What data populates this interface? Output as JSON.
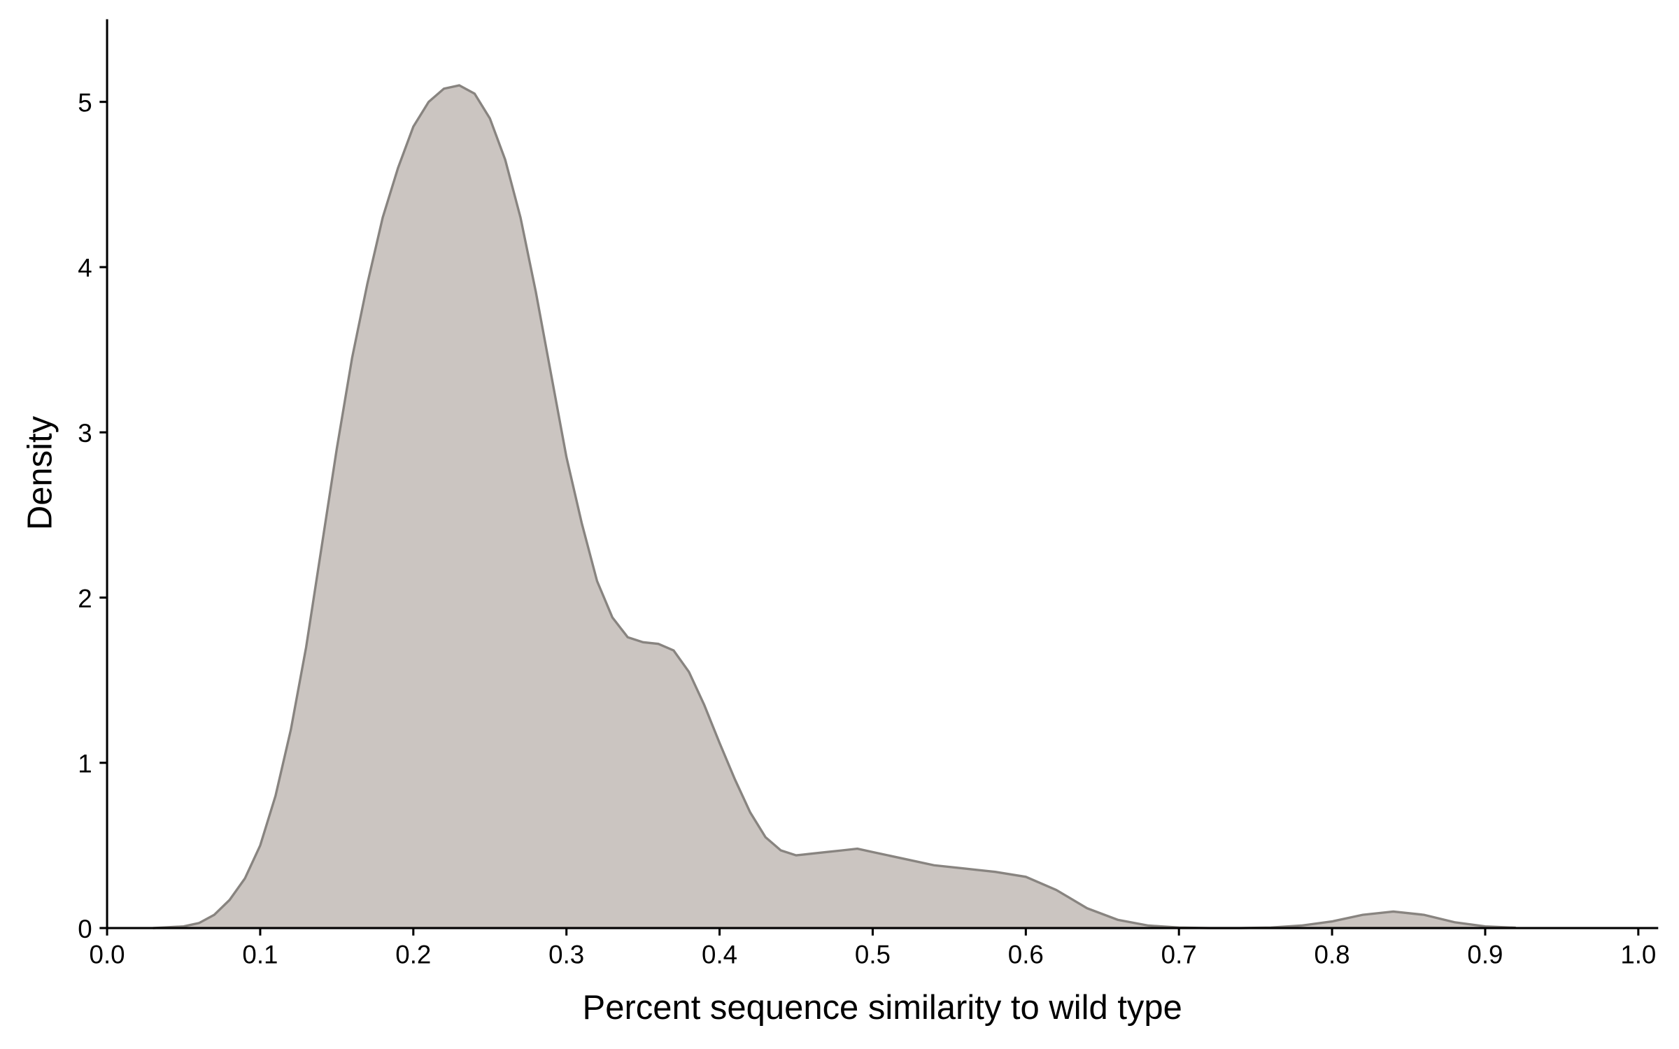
{
  "chart_data": {
    "type": "area",
    "x_label": "Percent sequence similarity to wild type",
    "y_label": "Density",
    "series": [
      {
        "color": "#cbc5c1",
        "line_color": "#888480",
        "x": [
          0.03,
          0.05,
          0.06,
          0.07,
          0.08,
          0.09,
          0.1,
          0.11,
          0.12,
          0.13,
          0.14,
          0.15,
          0.16,
          0.17,
          0.18,
          0.19,
          0.2,
          0.21,
          0.22,
          0.23,
          0.24,
          0.25,
          0.26,
          0.27,
          0.28,
          0.29,
          0.3,
          0.31,
          0.32,
          0.33,
          0.34,
          0.35,
          0.36,
          0.37,
          0.38,
          0.39,
          0.4,
          0.41,
          0.42,
          0.43,
          0.44,
          0.45,
          0.46,
          0.47,
          0.48,
          0.49,
          0.5,
          0.52,
          0.54,
          0.56,
          0.58,
          0.6,
          0.62,
          0.64,
          0.66,
          0.68,
          0.7,
          0.72,
          0.74,
          0.76,
          0.78,
          0.8,
          0.82,
          0.84,
          0.86,
          0.88,
          0.9,
          0.92
        ],
        "values": [
          0,
          0.01,
          0.03,
          0.08,
          0.17,
          0.3,
          0.5,
          0.8,
          1.2,
          1.7,
          2.3,
          2.9,
          3.45,
          3.9,
          4.3,
          4.6,
          4.85,
          5.0,
          5.08,
          5.1,
          5.05,
          4.9,
          4.65,
          4.3,
          3.85,
          3.35,
          2.85,
          2.45,
          2.1,
          1.88,
          1.76,
          1.73,
          1.72,
          1.68,
          1.55,
          1.35,
          1.12,
          0.9,
          0.7,
          0.55,
          0.47,
          0.44,
          0.45,
          0.46,
          0.47,
          0.48,
          0.46,
          0.42,
          0.38,
          0.36,
          0.34,
          0.31,
          0.23,
          0.12,
          0.05,
          0.015,
          0.003,
          0,
          0,
          0.003,
          0.015,
          0.04,
          0.08,
          0.1,
          0.08,
          0.035,
          0.01,
          0.002
        ]
      }
    ],
    "xlim": [
      0,
      1.013
    ],
    "ylim": [
      0,
      5.5
    ],
    "xticks": [
      {
        "value": 0,
        "label": "0.0"
      },
      0.1,
      0.2,
      0.3,
      0.4,
      0.5,
      0.6,
      0.7,
      0.8,
      0.9,
      {
        "value": 1,
        "label": "1.0"
      }
    ],
    "yticks": [
      0,
      1,
      2,
      3,
      4,
      5
    ],
    "grid": false
  }
}
